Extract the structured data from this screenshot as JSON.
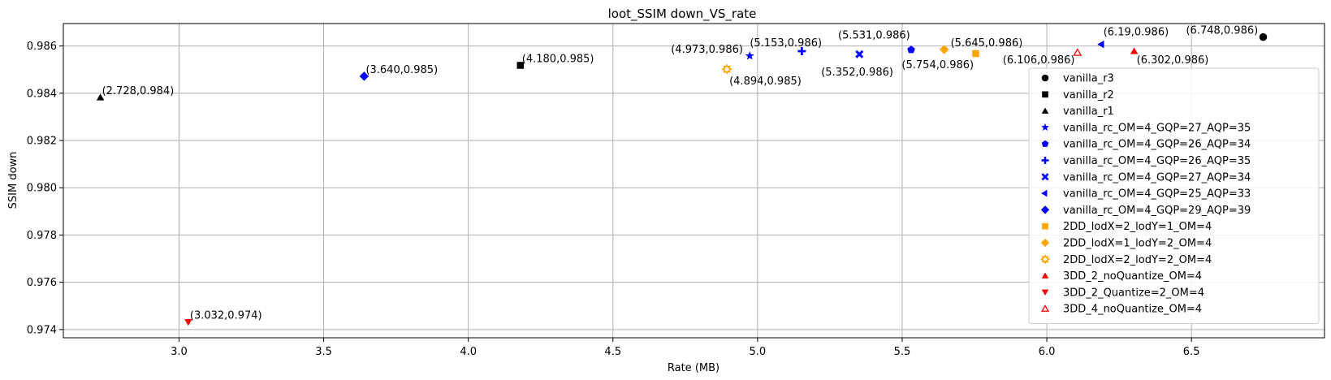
{
  "chart_data": {
    "type": "scatter",
    "title": "loot_SSIM down_VS_rate",
    "xlabel": "Rate (MB)",
    "ylabel": "SSIM down",
    "xlim": [
      2.6,
      6.96
    ],
    "ylim": [
      0.97365,
      0.98695
    ],
    "xticks": [
      3.0,
      3.5,
      4.0,
      4.5,
      5.0,
      5.5,
      6.0,
      6.5
    ],
    "xtick_labels": [
      "3.0",
      "3.5",
      "4.0",
      "4.5",
      "5.0",
      "5.5",
      "6.0",
      "6.5"
    ],
    "yticks": [
      0.974,
      0.976,
      0.978,
      0.98,
      0.982,
      0.984,
      0.986
    ],
    "ytick_labels": [
      "0.974",
      "0.976",
      "0.978",
      "0.980",
      "0.982",
      "0.984",
      "0.986"
    ],
    "grid": true,
    "legend_position": "right",
    "series": [
      {
        "name": "vanilla_r3",
        "marker": "circle",
        "color": "#000000",
        "x": 6.748,
        "y": 0.98638,
        "label": "(6.748,0.986)"
      },
      {
        "name": "vanilla_r2",
        "marker": "square",
        "color": "#000000",
        "x": 4.18,
        "y": 0.98518,
        "label": "(4.180,0.985)"
      },
      {
        "name": "vanilla_r1",
        "marker": "triangle-up",
        "color": "#000000",
        "x": 2.728,
        "y": 0.98382,
        "label": "(2.728,0.984)"
      },
      {
        "name": "vanilla_rc_OM=4_GQP=27_AQP=35",
        "marker": "star",
        "color": "#0000ff",
        "x": 4.973,
        "y": 0.98558,
        "label": "(4.973,0.986)"
      },
      {
        "name": "vanilla_rc_OM=4_GQP=26_AQP=34",
        "marker": "pentagon",
        "color": "#0000ff",
        "x": 5.531,
        "y": 0.98584,
        "label": "(5.531,0.986)"
      },
      {
        "name": "vanilla_rc_OM=4_GQP=26_AQP=35",
        "marker": "plus",
        "color": "#0000ff",
        "x": 5.153,
        "y": 0.98578,
        "label": "(5.153,0.986)"
      },
      {
        "name": "vanilla_rc_OM=4_GQP=27_AQP=34",
        "marker": "x",
        "color": "#0000ff",
        "x": 5.352,
        "y": 0.98565,
        "label": "(5.352,0.986)"
      },
      {
        "name": "vanilla_rc_OM=4_GQP=25_AQP=33",
        "marker": "triangle-left",
        "color": "#0000ff",
        "x": 6.19,
        "y": 0.98607,
        "label": "(6.19,0.986)"
      },
      {
        "name": "vanilla_rc_OM=4_GQP=29_AQP=39",
        "marker": "diamond",
        "color": "#0000ff",
        "x": 3.64,
        "y": 0.98472,
        "label": "(3.640,0.985)"
      },
      {
        "name": "2DD_lodX=2_lodY=1_OM=4",
        "marker": "square",
        "color": "#ffa500",
        "x": 5.754,
        "y": 0.98568,
        "label": "(5.754,0.986)"
      },
      {
        "name": "2DD_lodX=1_lodY=2_OM=4",
        "marker": "diamond",
        "color": "#ffa500",
        "x": 5.645,
        "y": 0.98585,
        "label": "(5.645,0.986)"
      },
      {
        "name": "2DD_lodX=2_lodY=2_OM=4",
        "marker": "sun",
        "color": "#ffa500",
        "x": 4.894,
        "y": 0.98502,
        "label": "(4.894,0.985)"
      },
      {
        "name": "3DD_2_noQuantize_OM=4",
        "marker": "triangle-up",
        "color": "#ff0000",
        "x": 6.302,
        "y": 0.98578,
        "label": "(6.302,0.986)"
      },
      {
        "name": "3DD_2_Quantize=2_OM=4",
        "marker": "triangle-down",
        "color": "#ff0000",
        "x": 3.032,
        "y": 0.97432,
        "label": "(3.032,0.974)"
      },
      {
        "name": "3DD_4_noQuantize_OM=4",
        "marker": "triangle-up-open",
        "color": "#ff0000",
        "x": 6.106,
        "y": 0.98572,
        "label": "(6.106,0.986)"
      }
    ]
  }
}
